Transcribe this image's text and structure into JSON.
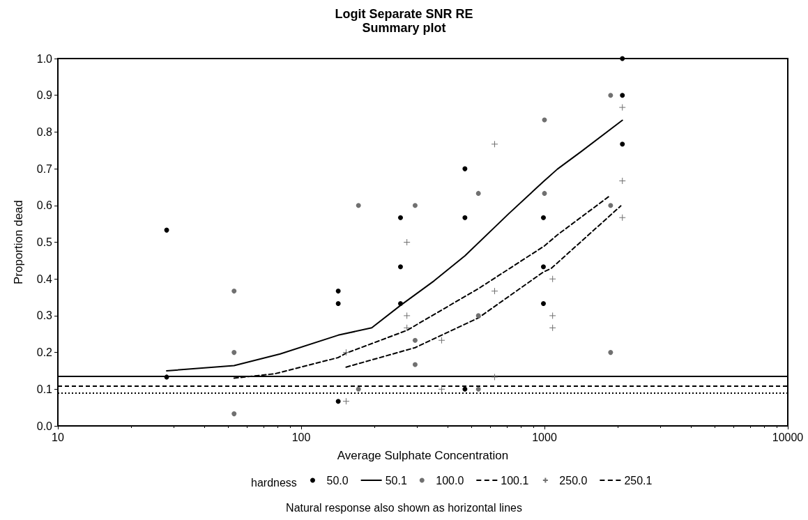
{
  "chart_data": {
    "type": "scatter",
    "title": "Logit Separate SNR RE",
    "subtitle": "Summary plot",
    "xlabel": "Average Sulphate Concentration",
    "ylabel": "Proportion dead",
    "legend_title": "hardness",
    "annotations": [
      "Natural response also shown as horizontal lines"
    ],
    "log": "x",
    "grid": false,
    "legend": "bottom",
    "xlim": [
      10,
      10000
    ],
    "xticks": [
      10,
      100,
      1000,
      10000
    ],
    "ylim": [
      0,
      1
    ],
    "yticks": [
      {
        "value": 0,
        "label": "0.0"
      },
      0.1,
      0.2,
      0.3,
      0.4,
      0.5,
      0.6,
      0.7,
      0.8,
      0.9,
      {
        "value": 1,
        "label": "1.0"
      }
    ],
    "series": [
      {
        "name": "50.0",
        "type": "scatter",
        "marker": "circle",
        "color": "#000000",
        "x": [
          28,
          28,
          142,
          142,
          142,
          256,
          256,
          256,
          471,
          471,
          471,
          990,
          990,
          990,
          2090,
          2090,
          2090
        ],
        "values": [
          0.533,
          0.133,
          0.367,
          0.333,
          0.067,
          0.567,
          0.433,
          0.333,
          0.7,
          0.567,
          0.1,
          0.567,
          0.433,
          0.333,
          1.0,
          0.9,
          0.767
        ]
      },
      {
        "name": "50.1",
        "type": "line",
        "marker": "none",
        "line_style": "solid",
        "color": "#000000",
        "x": [
          28,
          53,
          82,
          142,
          195,
          256,
          352,
          471,
          714,
          990,
          1130,
          1416,
          2090
        ],
        "values": [
          0.15,
          0.164,
          0.196,
          0.247,
          0.267,
          0.328,
          0.395,
          0.463,
          0.578,
          0.665,
          0.699,
          0.747,
          0.832
        ]
      },
      {
        "name": "100.0",
        "type": "scatter",
        "marker": "circle",
        "color": "#707070",
        "x": [
          53,
          53,
          53,
          172,
          172,
          294,
          294,
          294,
          535,
          535,
          535,
          1000,
          1000,
          1870,
          1870,
          1870
        ],
        "values": [
          0.367,
          0.2,
          0.033,
          0.6,
          0.1,
          0.6,
          0.233,
          0.167,
          0.633,
          0.3,
          0.1,
          0.833,
          0.633,
          0.9,
          0.6,
          0.2
        ]
      },
      {
        "name": "100.1",
        "type": "line",
        "marker": "none",
        "line_style": "dashed",
        "color": "#000000",
        "x": [
          53,
          78,
          142,
          153,
          272,
          539,
          1000,
          1130,
          1870
        ],
        "values": [
          0.13,
          0.142,
          0.186,
          0.198,
          0.26,
          0.375,
          0.49,
          0.52,
          0.628
        ]
      },
      {
        "name": "250.0",
        "type": "scatter",
        "marker": "cross",
        "color": "#707070",
        "x": [
          153,
          153,
          272,
          272,
          272,
          378,
          378,
          624,
          624,
          624,
          1080,
          1080,
          1080,
          2090,
          2090,
          2090
        ],
        "values": [
          0.2,
          0.067,
          0.5,
          0.3,
          0.267,
          0.233,
          0.1,
          0.767,
          0.367,
          0.133,
          0.4,
          0.3,
          0.267,
          0.867,
          0.667,
          0.567
        ]
      },
      {
        "name": "250.1",
        "type": "line",
        "marker": "none",
        "line_style": "dashed",
        "color": "#000000",
        "x": [
          153,
          294,
          535,
          990,
          1067,
          2060
        ],
        "values": [
          0.16,
          0.213,
          0.294,
          0.419,
          0.429,
          0.599
        ]
      }
    ],
    "ref_lines": [
      {
        "axis": "y",
        "value": 0.136,
        "color": "#000000",
        "line_style": "solid"
      },
      {
        "axis": "y",
        "value": 0.108,
        "color": "#000000",
        "line_style": "dashed"
      },
      {
        "axis": "y",
        "value": 0.09,
        "color": "#000000",
        "line_style": "dotted"
      }
    ]
  }
}
